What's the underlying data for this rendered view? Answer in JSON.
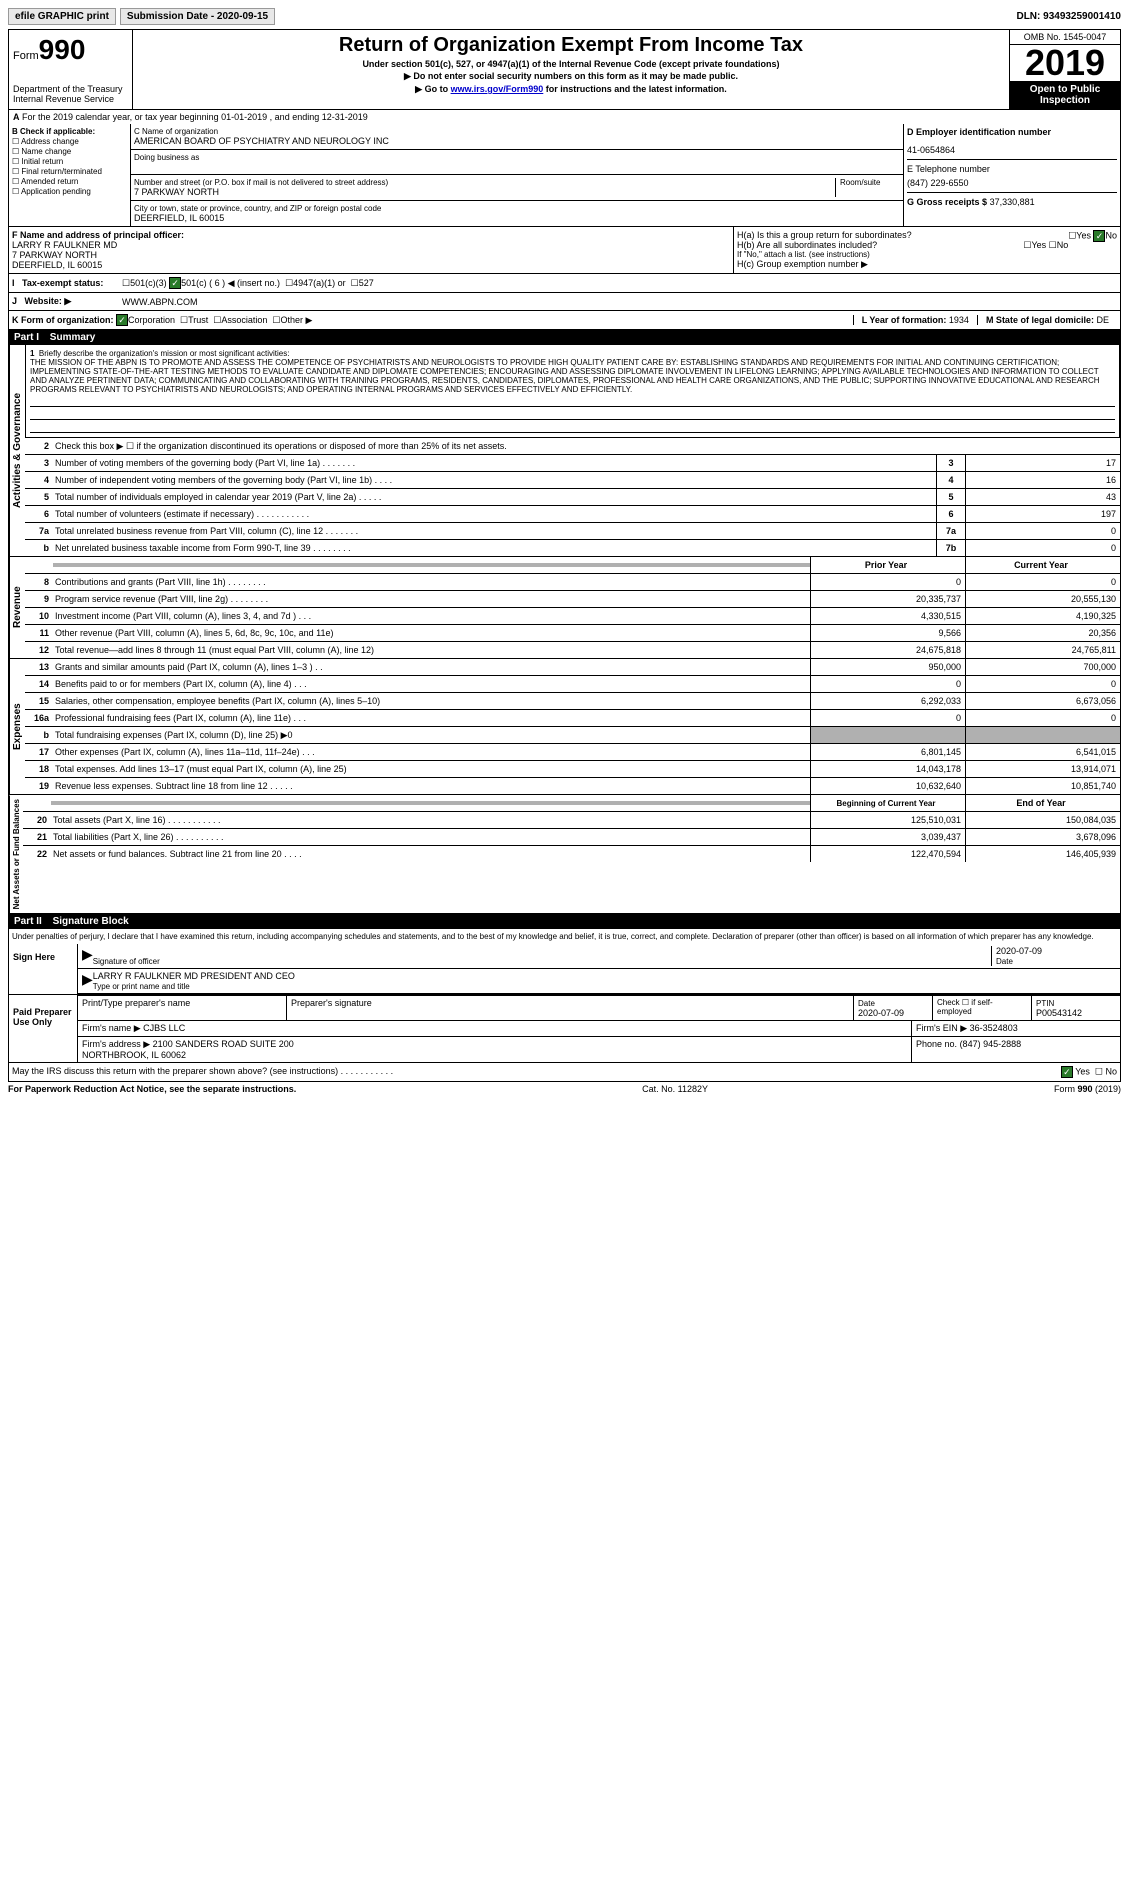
{
  "topbar": {
    "efile": "efile GRAPHIC print",
    "submission_label": "Submission Date - 2020-09-15",
    "dln": "DLN: 93493259001410"
  },
  "header": {
    "form_label": "Form",
    "form_num": "990",
    "dept": "Department of the Treasury\nInternal Revenue Service",
    "title": "Return of Organization Exempt From Income Tax",
    "subtitle": "Under section 501(c), 527, or 4947(a)(1) of the Internal Revenue Code (except private foundations)",
    "warn": "▶ Do not enter social security numbers on this form as it may be made public.",
    "goto_pre": "▶ Go to ",
    "goto_link": "www.irs.gov/Form990",
    "goto_post": " for instructions and the latest information.",
    "omb": "OMB No. 1545-0047",
    "year": "2019",
    "inspection": "Open to Public Inspection"
  },
  "period": "For the 2019 calendar year, or tax year beginning 01-01-2019   , and ending 12-31-2019",
  "boxB": {
    "label": "B Check if applicable:",
    "opts": [
      "Address change",
      "Name change",
      "Initial return",
      "Final return/terminated",
      "Amended return",
      "Application pending"
    ]
  },
  "boxC": {
    "name_label": "C Name of organization",
    "name": "AMERICAN BOARD OF PSYCHIATRY AND NEUROLOGY INC",
    "dba_label": "Doing business as",
    "street_label": "Number and street (or P.O. box if mail is not delivered to street address)",
    "room_label": "Room/suite",
    "street": "7 PARKWAY NORTH",
    "city_label": "City or town, state or province, country, and ZIP or foreign postal code",
    "city": "DEERFIELD, IL  60015"
  },
  "boxD": {
    "label": "D Employer identification number",
    "val": "41-0654864"
  },
  "boxE": {
    "label": "E Telephone number",
    "val": "(847) 229-6550"
  },
  "boxG": {
    "label": "G Gross receipts $",
    "val": "37,330,881"
  },
  "boxF": {
    "label": "F  Name and address of principal officer:",
    "name": "LARRY R FAULKNER MD",
    "addr1": "7 PARKWAY NORTH",
    "addr2": "DEERFIELD, IL  60015"
  },
  "boxH": {
    "a": "H(a)  Is this a group return for subordinates?",
    "b": "H(b)  Are all subordinates included?",
    "b_note": "If \"No,\" attach a list. (see instructions)",
    "c": "H(c)  Group exemption number ▶"
  },
  "status": {
    "label": "Tax-exempt status:",
    "opts": [
      "501(c)(3)",
      "501(c) ( 6 ) ◀ (insert no.)",
      "4947(a)(1) or",
      "527"
    ]
  },
  "website": {
    "label": "Website: ▶",
    "val": "WWW.ABPN.COM"
  },
  "rowK": {
    "label": "K Form of organization:",
    "opts": [
      "Corporation",
      "Trust",
      "Association",
      "Other ▶"
    ],
    "l_label": "L Year of formation:",
    "l_val": "1934",
    "m_label": "M State of legal domicile:",
    "m_val": "DE"
  },
  "part1": {
    "hdr": "Part I",
    "title": "Summary",
    "q1": "Briefly describe the organization's mission or most significant activities:",
    "mission": "THE MISSION OF THE ABPN IS TO PROMOTE AND ASSESS THE COMPETENCE OF PSYCHIATRISTS AND NEUROLOGISTS TO PROVIDE HIGH QUALITY PATIENT CARE BY: ESTABLISHING STANDARDS AND REQUIREMENTS FOR INITIAL AND CONTINUING CERTIFICATION; IMPLEMENTING STATE-OF-THE-ART TESTING METHODS TO EVALUATE CANDIDATE AND DIPLOMATE COMPETENCIES; ENCOURAGING AND ASSESSING DIPLOMATE INVOLVEMENT IN LIFELONG LEARNING; APPLYING AVAILABLE TECHNOLOGIES AND INFORMATION TO COLLECT AND ANALYZE PERTINENT DATA; COMMUNICATING AND COLLABORATING WITH TRAINING PROGRAMS, RESIDENTS, CANDIDATES, DIPLOMATES, PROFESSIONAL AND HEALTH CARE ORGANIZATIONS, AND THE PUBLIC; SUPPORTING INNOVATIVE EDUCATIONAL AND RESEARCH PROGRAMS RELEVANT TO PSYCHIATRISTS AND NEUROLOGISTS; AND OPERATING INTERNAL PROGRAMS AND SERVICES EFFECTIVELY AND EFFICIENTLY.",
    "q2": "Check this box ▶ ☐ if the organization discontinued its operations or disposed of more than 25% of its net assets.",
    "gov_label": "Activities & Governance",
    "rev_label": "Revenue",
    "exp_label": "Expenses",
    "net_label": "Net Assets or Fund Balances",
    "rows_gov": [
      {
        "n": "3",
        "t": "Number of voting members of the governing body (Part VI, line 1a)  .   .   .   .   .   .   .",
        "box": "3",
        "v": "17"
      },
      {
        "n": "4",
        "t": "Number of independent voting members of the governing body (Part VI, line 1b)  .   .   .   .",
        "box": "4",
        "v": "16"
      },
      {
        "n": "5",
        "t": "Total number of individuals employed in calendar year 2019 (Part V, line 2a)  .   .   .   .   .",
        "box": "5",
        "v": "43"
      },
      {
        "n": "6",
        "t": "Total number of volunteers (estimate if necessary)  .   .   .   .   .   .   .   .   .   .   .",
        "box": "6",
        "v": "197"
      },
      {
        "n": "7a",
        "t": "Total unrelated business revenue from Part VIII, column (C), line 12  .   .   .   .   .   .   .",
        "box": "7a",
        "v": "0"
      },
      {
        "n": "b",
        "t": "Net unrelated business taxable income from Form 990-T, line 39  .   .   .   .   .   .   .   .",
        "box": "7b",
        "v": "0"
      }
    ],
    "col_prior": "Prior Year",
    "col_current": "Current Year",
    "rows_rev": [
      {
        "n": "8",
        "t": "Contributions and grants (Part VIII, line 1h)  .   .   .   .   .   .   .   .",
        "p": "0",
        "c": "0"
      },
      {
        "n": "9",
        "t": "Program service revenue (Part VIII, line 2g)  .   .   .   .   .   .   .   .",
        "p": "20,335,737",
        "c": "20,555,130"
      },
      {
        "n": "10",
        "t": "Investment income (Part VIII, column (A), lines 3, 4, and 7d )  .   .   .",
        "p": "4,330,515",
        "c": "4,190,325"
      },
      {
        "n": "11",
        "t": "Other revenue (Part VIII, column (A), lines 5, 6d, 8c, 9c, 10c, and 11e)",
        "p": "9,566",
        "c": "20,356"
      },
      {
        "n": "12",
        "t": "Total revenue—add lines 8 through 11 (must equal Part VIII, column (A), line 12)",
        "p": "24,675,818",
        "c": "24,765,811"
      }
    ],
    "rows_exp": [
      {
        "n": "13",
        "t": "Grants and similar amounts paid (Part IX, column (A), lines 1–3 )  .   .",
        "p": "950,000",
        "c": "700,000"
      },
      {
        "n": "14",
        "t": "Benefits paid to or for members (Part IX, column (A), line 4)  .   .   .",
        "p": "0",
        "c": "0"
      },
      {
        "n": "15",
        "t": "Salaries, other compensation, employee benefits (Part IX, column (A), lines 5–10)",
        "p": "6,292,033",
        "c": "6,673,056"
      },
      {
        "n": "16a",
        "t": "Professional fundraising fees (Part IX, column (A), line 11e)  .   .   .",
        "p": "0",
        "c": "0"
      },
      {
        "n": "b",
        "t": "Total fundraising expenses (Part IX, column (D), line 25) ▶0",
        "p": "",
        "c": "",
        "shaded": true
      },
      {
        "n": "17",
        "t": "Other expenses (Part IX, column (A), lines 11a–11d, 11f–24e)  .   .   .",
        "p": "6,801,145",
        "c": "6,541,015"
      },
      {
        "n": "18",
        "t": "Total expenses. Add lines 13–17 (must equal Part IX, column (A), line 25)",
        "p": "14,043,178",
        "c": "13,914,071"
      },
      {
        "n": "19",
        "t": "Revenue less expenses. Subtract line 18 from line 12  .   .   .   .   .",
        "p": "10,632,640",
        "c": "10,851,740"
      }
    ],
    "col_begin": "Beginning of Current Year",
    "col_end": "End of Year",
    "rows_net": [
      {
        "n": "20",
        "t": "Total assets (Part X, line 16)  .   .   .   .   .   .   .   .   .   .   .",
        "p": "125,510,031",
        "c": "150,084,035"
      },
      {
        "n": "21",
        "t": "Total liabilities (Part X, line 26)  .   .   .   .   .   .   .   .   .   .",
        "p": "3,039,437",
        "c": "3,678,096"
      },
      {
        "n": "22",
        "t": "Net assets or fund balances. Subtract line 21 from line 20  .   .   .   .",
        "p": "122,470,594",
        "c": "146,405,939"
      }
    ]
  },
  "part2": {
    "hdr": "Part II",
    "title": "Signature Block",
    "decl": "Under penalties of perjury, I declare that I have examined this return, including accompanying schedules and statements, and to the best of my knowledge and belief, it is true, correct, and complete. Declaration of preparer (other than officer) is based on all information of which preparer has any knowledge.",
    "sign_here": "Sign Here",
    "sig_officer": "Signature of officer",
    "date": "2020-07-09",
    "date_label": "Date",
    "officer_name": "LARRY R FAULKNER MD  PRESIDENT AND CEO",
    "type_name": "Type or print name and title",
    "paid": "Paid Preparer Use Only",
    "prep_name_label": "Print/Type preparer's name",
    "prep_sig_label": "Preparer's signature",
    "prep_date": "2020-07-09",
    "self_emp": "Check ☐ if self-employed",
    "ptin_label": "PTIN",
    "ptin": "P00543142",
    "firm_name_label": "Firm's name    ▶",
    "firm_name": "CJBS LLC",
    "firm_ein_label": "Firm's EIN ▶",
    "firm_ein": "36-3524803",
    "firm_addr_label": "Firm's address ▶",
    "firm_addr": "2100 SANDERS ROAD SUITE 200\nNORTHBROOK, IL  60062",
    "phone_label": "Phone no.",
    "phone": "(847) 945-2888",
    "discuss": "May the IRS discuss this return with the preparer shown above? (see instructions)  .   .   .   .   .   .   .   .   .   .   .",
    "yes": "Yes",
    "no": "No"
  },
  "footer": {
    "left": "For Paperwork Reduction Act Notice, see the separate instructions.",
    "mid": "Cat. No. 11282Y",
    "right": "Form 990 (2019)"
  }
}
